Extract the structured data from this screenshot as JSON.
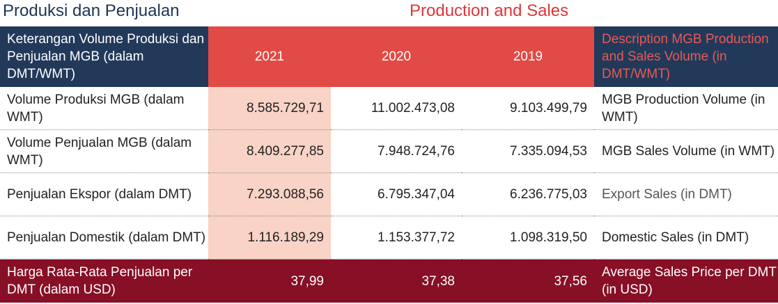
{
  "title_id": "Produksi dan Penjualan",
  "title_en": "Production and Sales",
  "table": {
    "header": {
      "desc_id": "Keterangan Volume Produksi dan Penjualan MGB (dalam DMT/WMT)",
      "years": [
        "2021",
        "2020",
        "2019"
      ],
      "desc_en": "Description MGB Production and Sales Volume (in DMT/WMT)"
    },
    "rows": [
      {
        "label_id": "Volume Produksi MGB (dalam WMT)",
        "v2021": "8.585.729,71",
        "v2020": "11.002.473,08",
        "v2019": "9.103.499,79",
        "label_en": "MGB Production Volume (in WMT)"
      },
      {
        "label_id": "Volume Penjualan MGB (dalam WMT)",
        "v2021": "8.409.277,85",
        "v2020": "7.948.724,76",
        "v2019": "7.335.094,53",
        "label_en": "MGB Sales Volume (in WMT)"
      },
      {
        "label_id": "Penjualan Ekspor (dalam DMT)",
        "v2021": "7.293.088,56",
        "v2020": "6.795.347,04",
        "v2019": "6.236.775,03",
        "label_en": "Export Sales (in DMT)"
      },
      {
        "label_id": "Penjualan Domestik (dalam DMT)",
        "v2021": "1.116.189,29",
        "v2020": "1.153.377,72",
        "v2019": "1.098.319,50",
        "label_en": "Domestic Sales (in DMT)"
      }
    ],
    "price_row": {
      "label_id": "Harga Rata-Rata Penjualan per DMT (dalam USD)",
      "v2021": "37,99",
      "v2020": "37,38",
      "v2019": "37,56",
      "label_en": "Average Sales Price per DMT (in USD)"
    }
  },
  "colors": {
    "navy": "#22395a",
    "header_red": "#e24a45",
    "title_red": "#e0353a",
    "highlight_2021": "#f8d3c6",
    "maroon": "#870f26"
  }
}
